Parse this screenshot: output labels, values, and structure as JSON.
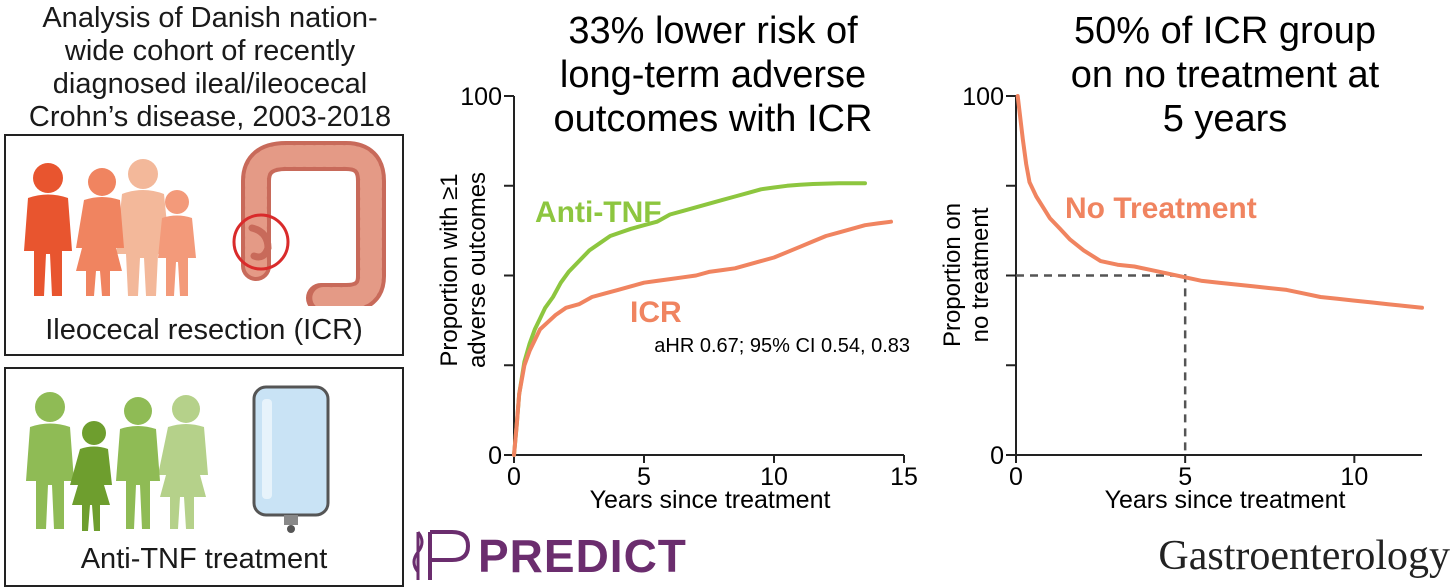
{
  "intro": {
    "lines": [
      "Analysis of Danish nation-",
      "wide cohort of recently",
      "diagnosed ileal/ileocecal",
      "Crohn’s disease, 2003-2018"
    ]
  },
  "panels": {
    "icr": {
      "caption": "Ileocecal resection (ICR)"
    },
    "antitnf": {
      "caption": "Anti-TNF treatment"
    }
  },
  "branding": {
    "predict": "PREDICT",
    "journal": "Gastroenterology"
  },
  "colors": {
    "icr": "#f08460",
    "antitnf": "#8dc63f",
    "axis": "#222222",
    "guide": "#555555"
  },
  "chart_data": [
    {
      "type": "line",
      "title": [
        "33% lower risk of",
        "long-term adverse",
        "outcomes with ICR"
      ],
      "xlabel": "Years since treatment",
      "ylabel": [
        "Proportion with ≥1",
        "adverse outcomes"
      ],
      "xlim": [
        0,
        15
      ],
      "ylim": [
        0,
        100
      ],
      "xticks": [
        0,
        5,
        10,
        15
      ],
      "ytick_labels": [
        {
          "value": 0,
          "label": "0"
        },
        {
          "value": 100,
          "label": "100"
        }
      ],
      "yticks": [
        0,
        25,
        50,
        75,
        100
      ],
      "annotation": "aHR 0.67; 95% CI 0.54, 0.83",
      "series": [
        {
          "name": "Anti-TNF",
          "color": "#8dc63f",
          "x": [
            0,
            0.1,
            0.2,
            0.4,
            0.6,
            0.8,
            1.0,
            1.2,
            1.5,
            1.8,
            2.1,
            2.5,
            2.9,
            3.3,
            3.7,
            4.1,
            4.5,
            5.0,
            5.5,
            6.0,
            6.5,
            7.0,
            7.5,
            8.0,
            8.5,
            9.0,
            9.5,
            10.0,
            10.5,
            11.0,
            11.5,
            12.0,
            12.5,
            13.0,
            13.5
          ],
          "values": [
            0,
            8,
            17,
            26,
            31,
            35,
            38,
            41,
            44,
            48,
            51,
            54,
            57,
            59,
            61,
            62,
            63,
            64,
            65,
            67,
            68,
            69,
            70,
            71,
            72,
            73,
            74,
            74.5,
            75,
            75.3,
            75.5,
            75.6,
            75.7,
            75.7,
            75.7
          ]
        },
        {
          "name": "ICR",
          "color": "#f08460",
          "x": [
            0,
            0.1,
            0.2,
            0.4,
            0.6,
            0.8,
            1.0,
            1.3,
            1.6,
            2.0,
            2.5,
            3.0,
            3.5,
            4.0,
            4.5,
            5.0,
            5.5,
            6.0,
            6.5,
            7.0,
            7.5,
            8.0,
            8.5,
            9.0,
            9.5,
            10.0,
            10.5,
            11.0,
            11.5,
            12.0,
            12.5,
            13.0,
            13.5,
            14.0,
            14.5
          ],
          "values": [
            0,
            8,
            17,
            25,
            29,
            32,
            35,
            37,
            39,
            41,
            42,
            44,
            45,
            46,
            47,
            48,
            48.5,
            49,
            49.5,
            50,
            51,
            51.5,
            52,
            53,
            54,
            55,
            56.5,
            58,
            59.5,
            61,
            62,
            63,
            64,
            64.5,
            65
          ]
        }
      ]
    },
    {
      "type": "line",
      "title": [
        "50% of ICR group",
        "on no treatment at",
        "5 years"
      ],
      "xlabel": "Years since treatment",
      "ylabel": [
        "Proportion on",
        "no treatment"
      ],
      "xlim": [
        0,
        12
      ],
      "ylim": [
        0,
        100
      ],
      "xticks": [
        0,
        5,
        10
      ],
      "ytick_labels": [
        {
          "value": 0,
          "label": "0"
        },
        {
          "value": 100,
          "label": "100"
        }
      ],
      "yticks": [
        0,
        25,
        50,
        75,
        100
      ],
      "reference": {
        "x": 5,
        "y": 50
      },
      "series": [
        {
          "name": "No Treatment",
          "color": "#f08460",
          "x": [
            0.05,
            0.1,
            0.2,
            0.3,
            0.4,
            0.6,
            0.8,
            1.0,
            1.3,
            1.6,
            2.0,
            2.5,
            3.0,
            3.5,
            4.0,
            4.5,
            5.0,
            5.5,
            6.0,
            6.5,
            7.0,
            7.5,
            8.0,
            8.5,
            9.0,
            9.5,
            10.0,
            10.5,
            11.0,
            11.5,
            12.0
          ],
          "values": [
            100,
            96,
            88,
            81,
            76,
            72,
            69,
            66,
            63,
            60,
            57,
            54,
            53,
            52.5,
            51.5,
            50.5,
            49.5,
            48.5,
            48,
            47.5,
            47,
            46.5,
            46,
            45,
            44,
            43.5,
            43,
            42.5,
            42,
            41.5,
            41
          ]
        }
      ]
    }
  ]
}
